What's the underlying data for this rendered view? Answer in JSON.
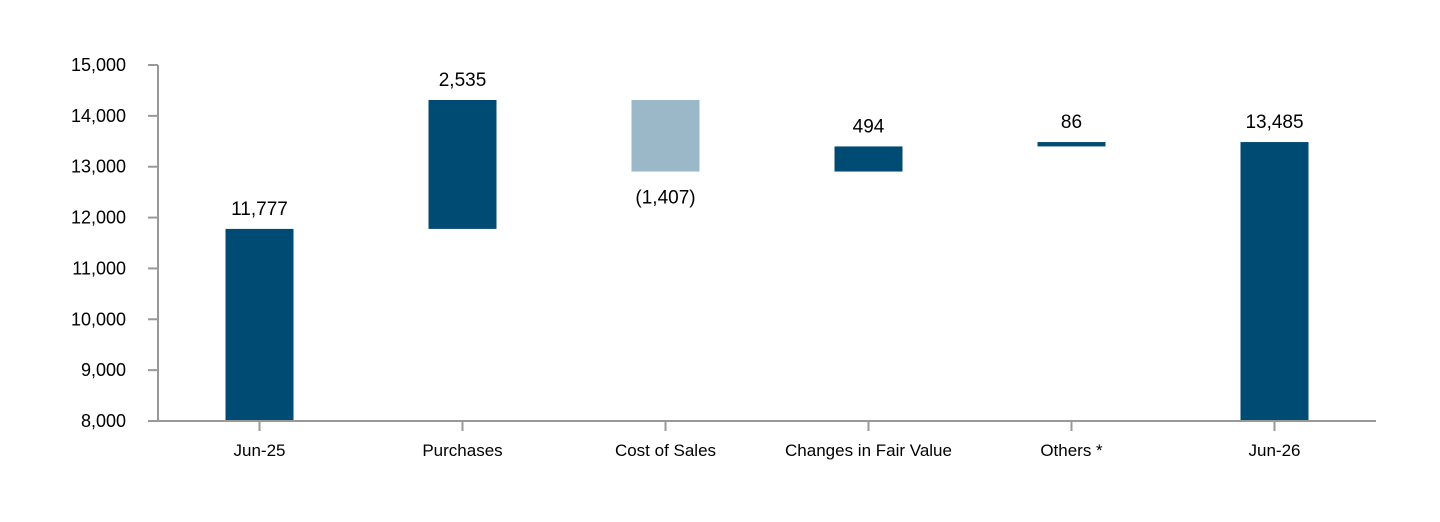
{
  "chart_data": {
    "type": "bar",
    "subtype": "waterfall",
    "title": "",
    "xlabel": "",
    "ylabel": "",
    "ylim": [
      8000,
      15000
    ],
    "yticks": [
      8000,
      9000,
      10000,
      11000,
      12000,
      13000,
      14000,
      15000
    ],
    "ytick_labels": [
      "8,000",
      "9,000",
      "10,000",
      "11,000",
      "12,000",
      "13,000",
      "14,000",
      "15,000"
    ],
    "grid": false,
    "legend": "none",
    "categories": [
      "Jun-25",
      "Purchases",
      "Cost of Sales",
      "Changes in Fair Value",
      "Others *",
      "Jun-26"
    ],
    "values": [
      11777,
      2535,
      -1407,
      494,
      86,
      13485
    ],
    "bar_kinds": [
      "total",
      "delta",
      "delta",
      "delta",
      "delta",
      "total"
    ],
    "data_labels": [
      "11,777",
      "2,535",
      "(1,407)",
      "494",
      "86",
      "13,485"
    ],
    "colors": {
      "increase": "#004b73",
      "decrease": "#9bb8c8",
      "total": "#004b73",
      "axis": "#999999"
    }
  }
}
